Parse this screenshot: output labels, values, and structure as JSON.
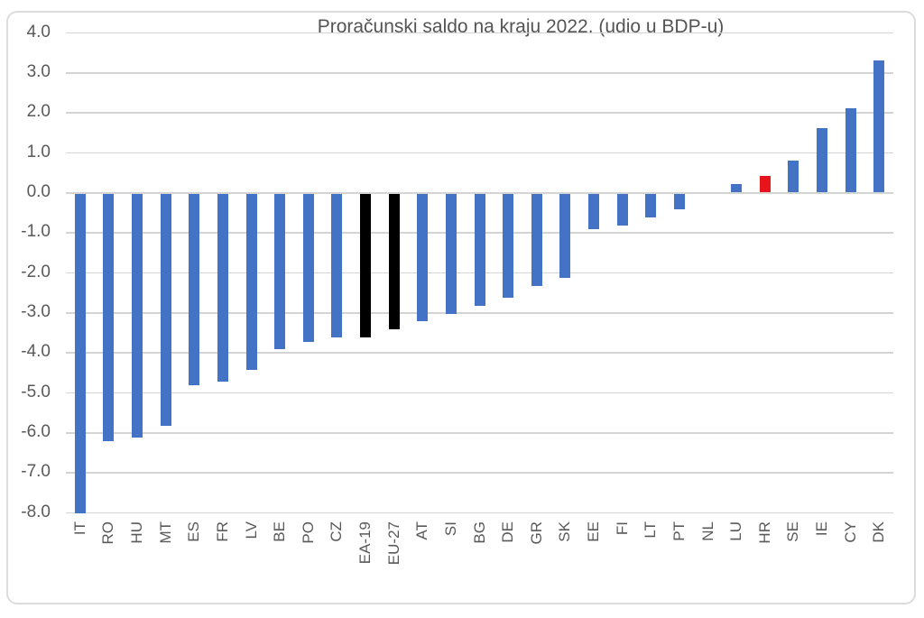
{
  "chart_data": {
    "type": "bar",
    "title": "Proračunski saldo na kraju 2022. (udio u BDP-u)",
    "categories": [
      "IT",
      "RO",
      "HU",
      "MT",
      "ES",
      "FR",
      "LV",
      "BE",
      "PO",
      "CZ",
      "EA-19",
      "EU-27",
      "AT",
      "SI",
      "BG",
      "DE",
      "GR",
      "SK",
      "EE",
      "FI",
      "LT",
      "PT",
      "NL",
      "LU",
      "HR",
      "SE",
      "IE",
      "CY",
      "DK"
    ],
    "values": [
      -8.0,
      -6.2,
      -6.1,
      -5.8,
      -4.8,
      -4.7,
      -4.4,
      -3.9,
      -3.7,
      -3.6,
      -3.6,
      -3.4,
      -3.2,
      -3.0,
      -2.8,
      -2.6,
      -2.3,
      -2.1,
      -0.9,
      -0.8,
      -0.6,
      -0.4,
      0.0,
      0.2,
      0.4,
      0.8,
      1.6,
      2.1,
      3.3
    ],
    "bar_colors": {
      "default": "#4472c4",
      "EA-19": "#000000",
      "EU-27": "#000000",
      "HR": "#e8141b"
    },
    "xlabel": "",
    "ylabel": "",
    "ylim": [
      -8.0,
      4.0
    ],
    "ytick_step": 1.0,
    "ytick_labels": [
      "4.0",
      "3.0",
      "2.0",
      "1.0",
      "0.0",
      "-1.0",
      "-2.0",
      "-3.0",
      "-4.0",
      "-5.0",
      "-6.0",
      "-7.0",
      "-8.0"
    ],
    "grid": true,
    "legend_position": "none",
    "colors": {
      "gridline": "#d4d4d4",
      "axis_text": "#595959",
      "title_text": "#545454",
      "frame_border": "#dcdcdc",
      "background": "#ffffff"
    }
  }
}
